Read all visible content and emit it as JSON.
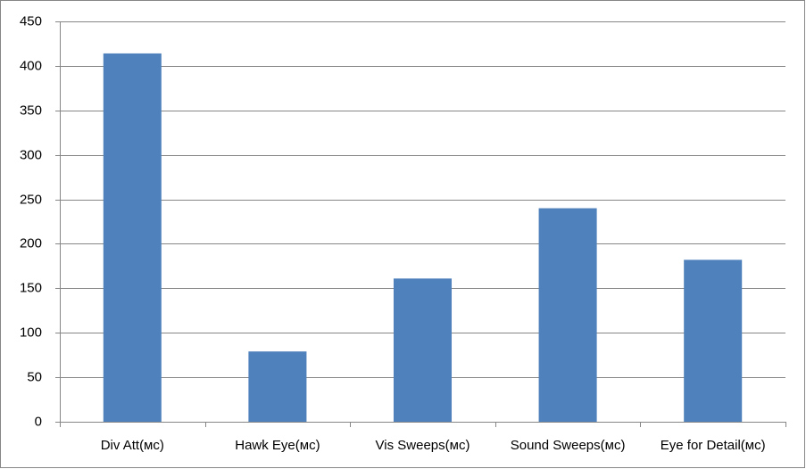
{
  "chart_data": {
    "type": "bar",
    "categories": [
      "Div Att(мс)",
      "Hawk Eye(мс)",
      "Vis Sweeps(мс)",
      "Sound Sweeps(мс)",
      "Eye for Detail(мс)"
    ],
    "values": [
      414,
      79,
      161,
      240,
      182
    ],
    "color": "#4f81bd",
    "ylim": [
      0,
      450
    ],
    "yticks": [
      0,
      50,
      100,
      150,
      200,
      250,
      300,
      350,
      400,
      450
    ],
    "grid": true
  }
}
